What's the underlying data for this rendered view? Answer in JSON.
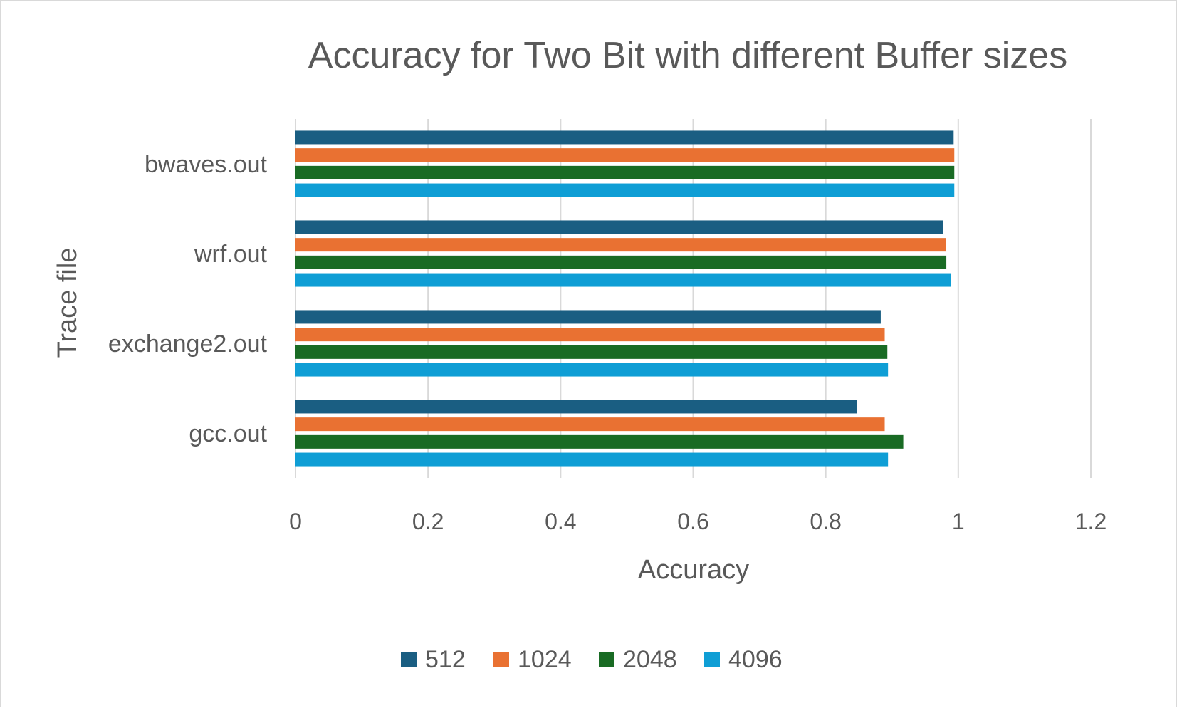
{
  "chart_data": {
    "type": "bar",
    "orientation": "horizontal",
    "title": "Accuracy for Two Bit with different Buffer sizes",
    "xlabel": "Accuracy",
    "ylabel": "Trace file",
    "categories": [
      "bwaves.out",
      "wrf.out",
      "exchange2.out",
      "gcc.out"
    ],
    "xlim": [
      0,
      1.2
    ],
    "x_ticks": [
      "0",
      "0.2",
      "0.4",
      "0.6",
      "0.8",
      "1",
      "1.2"
    ],
    "x_tick_values": [
      0,
      0.2,
      0.4,
      0.6,
      0.8,
      1.0,
      1.2
    ],
    "grid": true,
    "legend_position": "bottom",
    "series": [
      {
        "name": "512",
        "color": "#1a5e82",
        "values": [
          0.993,
          0.977,
          0.883,
          0.847
        ]
      },
      {
        "name": "1024",
        "color": "#e97132",
        "values": [
          0.994,
          0.981,
          0.889,
          0.889
        ]
      },
      {
        "name": "2048",
        "color": "#196b24",
        "values": [
          0.994,
          0.982,
          0.893,
          0.917
        ]
      },
      {
        "name": "4096",
        "color": "#0f9ed5",
        "values": [
          0.994,
          0.989,
          0.894,
          0.894
        ]
      }
    ]
  }
}
